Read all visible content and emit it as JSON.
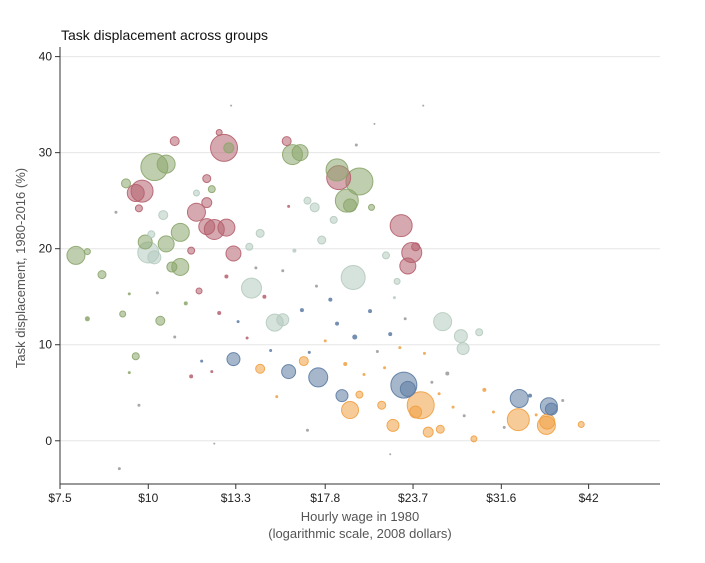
{
  "chart_data": {
    "type": "scatter",
    "title": "Task displacement across groups",
    "xlabel": "Hourly wage in 1980",
    "xlabel_sub": "(logarithmic scale, 2008 dollars)",
    "ylabel": "Task displacement, 1980-2016 (%)",
    "x_scale": "log",
    "xlim": [
      7.5,
      53
    ],
    "ylim": [
      -4.5,
      41
    ],
    "x_ticks": [
      7.5,
      10,
      13.3,
      17.8,
      23.7,
      31.6,
      42
    ],
    "x_tick_labels": [
      "$7.5",
      "$10",
      "$13.3",
      "$17.8",
      "$23.7",
      "$31.6",
      "$42"
    ],
    "y_ticks": [
      0,
      10,
      20,
      30,
      40
    ],
    "grid": "horizontal",
    "legend": "none",
    "colors": {
      "green": "#8ba66b",
      "red": "#b5606e",
      "blue": "#5c7ba3",
      "orange": "#f0a042",
      "lightgreen": "#b5cbbf",
      "gray": "#999999"
    },
    "points": [
      {
        "x": 7.9,
        "y": 19.3,
        "size": 18,
        "color": "green"
      },
      {
        "x": 8.2,
        "y": 19.7,
        "size": 6,
        "color": "green"
      },
      {
        "x": 8.6,
        "y": 17.3,
        "size": 8,
        "color": "green"
      },
      {
        "x": 8.2,
        "y": 12.7,
        "size": 5,
        "color": "green"
      },
      {
        "x": 9.2,
        "y": 13.2,
        "size": 6,
        "color": "green"
      },
      {
        "x": 9.6,
        "y": 8.8,
        "size": 7,
        "color": "green"
      },
      {
        "x": 9.3,
        "y": 26.8,
        "size": 9,
        "color": "green"
      },
      {
        "x": 9.6,
        "y": 25.8,
        "size": 17,
        "color": "red"
      },
      {
        "x": 9.8,
        "y": 26.0,
        "size": 22,
        "color": "red"
      },
      {
        "x": 10.2,
        "y": 28.5,
        "size": 27,
        "color": "green"
      },
      {
        "x": 10.6,
        "y": 28.8,
        "size": 18,
        "color": "green"
      },
      {
        "x": 9.9,
        "y": 20.7,
        "size": 14,
        "color": "green"
      },
      {
        "x": 10.0,
        "y": 19.6,
        "size": 21,
        "color": "lightgreen"
      },
      {
        "x": 10.2,
        "y": 19.1,
        "size": 13,
        "color": "lightgreen"
      },
      {
        "x": 10.6,
        "y": 20.5,
        "size": 16,
        "color": "green"
      },
      {
        "x": 11.1,
        "y": 21.7,
        "size": 18,
        "color": "green"
      },
      {
        "x": 10.8,
        "y": 18.1,
        "size": 10,
        "color": "green"
      },
      {
        "x": 11.1,
        "y": 18.1,
        "size": 17,
        "color": "green"
      },
      {
        "x": 10.5,
        "y": 23.5,
        "size": 9,
        "color": "lightgreen"
      },
      {
        "x": 10.1,
        "y": 21.5,
        "size": 7,
        "color": "lightgreen"
      },
      {
        "x": 10.4,
        "y": 12.5,
        "size": 9,
        "color": "green"
      },
      {
        "x": 10.9,
        "y": 31.2,
        "size": 9,
        "color": "red"
      },
      {
        "x": 9.7,
        "y": 24.2,
        "size": 7,
        "color": "red"
      },
      {
        "x": 11.7,
        "y": 23.8,
        "size": 18,
        "color": "red"
      },
      {
        "x": 12.1,
        "y": 22.3,
        "size": 16,
        "color": "red"
      },
      {
        "x": 12.4,
        "y": 22.0,
        "size": 20,
        "color": "red"
      },
      {
        "x": 12.9,
        "y": 22.2,
        "size": 17,
        "color": "red"
      },
      {
        "x": 12.1,
        "y": 24.8,
        "size": 10,
        "color": "red"
      },
      {
        "x": 12.8,
        "y": 30.5,
        "size": 27,
        "color": "red"
      },
      {
        "x": 13.0,
        "y": 30.5,
        "size": 10,
        "color": "green"
      },
      {
        "x": 12.6,
        "y": 32.1,
        "size": 6,
        "color": "red"
      },
      {
        "x": 13.2,
        "y": 19.5,
        "size": 15,
        "color": "red"
      },
      {
        "x": 12.1,
        "y": 27.3,
        "size": 8,
        "color": "red"
      },
      {
        "x": 12.3,
        "y": 26.2,
        "size": 7,
        "color": "green"
      },
      {
        "x": 11.7,
        "y": 25.8,
        "size": 6,
        "color": "lightgreen"
      },
      {
        "x": 11.5,
        "y": 19.8,
        "size": 7,
        "color": "red"
      },
      {
        "x": 11.8,
        "y": 15.6,
        "size": 6,
        "color": "red"
      },
      {
        "x": 14.0,
        "y": 15.9,
        "size": 20,
        "color": "lightgreen"
      },
      {
        "x": 14.4,
        "y": 21.6,
        "size": 8,
        "color": "lightgreen"
      },
      {
        "x": 13.9,
        "y": 20.2,
        "size": 7,
        "color": "lightgreen"
      },
      {
        "x": 15.1,
        "y": 12.3,
        "size": 17,
        "color": "lightgreen"
      },
      {
        "x": 15.5,
        "y": 12.6,
        "size": 12,
        "color": "lightgreen"
      },
      {
        "x": 16.0,
        "y": 29.8,
        "size": 20,
        "color": "green"
      },
      {
        "x": 16.4,
        "y": 30.0,
        "size": 16,
        "color": "green"
      },
      {
        "x": 15.7,
        "y": 31.2,
        "size": 9,
        "color": "red"
      },
      {
        "x": 16.8,
        "y": 25.0,
        "size": 7,
        "color": "lightgreen"
      },
      {
        "x": 17.2,
        "y": 24.3,
        "size": 9,
        "color": "lightgreen"
      },
      {
        "x": 17.6,
        "y": 20.9,
        "size": 8,
        "color": "lightgreen"
      },
      {
        "x": 18.5,
        "y": 28.2,
        "size": 22,
        "color": "green"
      },
      {
        "x": 18.6,
        "y": 27.4,
        "size": 24,
        "color": "red"
      },
      {
        "x": 19.9,
        "y": 27.0,
        "size": 27,
        "color": "green"
      },
      {
        "x": 19.1,
        "y": 25.0,
        "size": 23,
        "color": "green"
      },
      {
        "x": 19.3,
        "y": 24.5,
        "size": 13,
        "color": "green"
      },
      {
        "x": 19.5,
        "y": 17.0,
        "size": 24,
        "color": "lightgreen"
      },
      {
        "x": 18.3,
        "y": 23.0,
        "size": 7,
        "color": "lightgreen"
      },
      {
        "x": 20.7,
        "y": 24.3,
        "size": 6,
        "color": "green"
      },
      {
        "x": 21.7,
        "y": 19.3,
        "size": 7,
        "color": "lightgreen"
      },
      {
        "x": 22.8,
        "y": 22.4,
        "size": 22,
        "color": "red"
      },
      {
        "x": 23.6,
        "y": 19.6,
        "size": 20,
        "color": "red"
      },
      {
        "x": 23.3,
        "y": 18.2,
        "size": 16,
        "color": "red"
      },
      {
        "x": 23.9,
        "y": 20.2,
        "size": 8,
        "color": "red"
      },
      {
        "x": 22.5,
        "y": 16.6,
        "size": 6,
        "color": "lightgreen"
      },
      {
        "x": 26.1,
        "y": 12.4,
        "size": 18,
        "color": "lightgreen"
      },
      {
        "x": 27.7,
        "y": 10.9,
        "size": 13,
        "color": "lightgreen"
      },
      {
        "x": 27.9,
        "y": 9.6,
        "size": 12,
        "color": "lightgreen"
      },
      {
        "x": 29.4,
        "y": 11.3,
        "size": 7,
        "color": "lightgreen"
      },
      {
        "x": 13.2,
        "y": 8.5,
        "size": 13,
        "color": "blue"
      },
      {
        "x": 14.4,
        "y": 7.5,
        "size": 9,
        "color": "orange"
      },
      {
        "x": 15.8,
        "y": 7.2,
        "size": 14,
        "color": "blue"
      },
      {
        "x": 16.6,
        "y": 8.3,
        "size": 9,
        "color": "orange"
      },
      {
        "x": 17.4,
        "y": 6.6,
        "size": 19,
        "color": "blue"
      },
      {
        "x": 18.8,
        "y": 4.7,
        "size": 12,
        "color": "blue"
      },
      {
        "x": 19.3,
        "y": 3.2,
        "size": 17,
        "color": "orange"
      },
      {
        "x": 19.9,
        "y": 4.8,
        "size": 7,
        "color": "orange"
      },
      {
        "x": 21.4,
        "y": 3.7,
        "size": 8,
        "color": "orange"
      },
      {
        "x": 23.0,
        "y": 5.8,
        "size": 26,
        "color": "blue"
      },
      {
        "x": 23.3,
        "y": 5.4,
        "size": 15,
        "color": "blue"
      },
      {
        "x": 24.3,
        "y": 3.7,
        "size": 27,
        "color": "orange"
      },
      {
        "x": 23.9,
        "y": 3.0,
        "size": 12,
        "color": "orange"
      },
      {
        "x": 22.2,
        "y": 1.6,
        "size": 12,
        "color": "orange"
      },
      {
        "x": 24.9,
        "y": 0.9,
        "size": 10,
        "color": "orange"
      },
      {
        "x": 25.9,
        "y": 1.2,
        "size": 8,
        "color": "orange"
      },
      {
        "x": 28.9,
        "y": 0.2,
        "size": 6,
        "color": "orange"
      },
      {
        "x": 33.5,
        "y": 4.4,
        "size": 18,
        "color": "blue"
      },
      {
        "x": 33.4,
        "y": 2.2,
        "size": 22,
        "color": "orange"
      },
      {
        "x": 36.9,
        "y": 3.6,
        "size": 17,
        "color": "blue"
      },
      {
        "x": 37.2,
        "y": 3.3,
        "size": 12,
        "color": "blue"
      },
      {
        "x": 36.7,
        "y": 2.0,
        "size": 15,
        "color": "orange"
      },
      {
        "x": 36.6,
        "y": 1.6,
        "size": 18,
        "color": "orange"
      },
      {
        "x": 41.0,
        "y": 1.7,
        "size": 6,
        "color": "orange"
      },
      {
        "x": 9.0,
        "y": 23.8,
        "size": 3,
        "color": "gray"
      },
      {
        "x": 9.4,
        "y": 15.3,
        "size": 3,
        "color": "green"
      },
      {
        "x": 9.7,
        "y": 3.7,
        "size": 3,
        "color": "gray"
      },
      {
        "x": 9.1,
        "y": -2.9,
        "size": 3,
        "color": "gray"
      },
      {
        "x": 9.4,
        "y": 7.1,
        "size": 3,
        "color": "green"
      },
      {
        "x": 10.3,
        "y": 15.4,
        "size": 3,
        "color": "gray"
      },
      {
        "x": 10.9,
        "y": 10.8,
        "size": 3,
        "color": "gray"
      },
      {
        "x": 11.3,
        "y": 14.3,
        "size": 4,
        "color": "green"
      },
      {
        "x": 11.9,
        "y": 8.3,
        "size": 3,
        "color": "blue"
      },
      {
        "x": 12.3,
        "y": 7.2,
        "size": 3,
        "color": "red"
      },
      {
        "x": 11.5,
        "y": 6.7,
        "size": 4,
        "color": "red"
      },
      {
        "x": 12.6,
        "y": 13.3,
        "size": 4,
        "color": "red"
      },
      {
        "x": 12.9,
        "y": 17.1,
        "size": 4,
        "color": "red"
      },
      {
        "x": 13.4,
        "y": 12.4,
        "size": 3,
        "color": "blue"
      },
      {
        "x": 13.8,
        "y": 10.7,
        "size": 3,
        "color": "red"
      },
      {
        "x": 14.2,
        "y": 18.0,
        "size": 3,
        "color": "gray"
      },
      {
        "x": 14.6,
        "y": 15.0,
        "size": 4,
        "color": "red"
      },
      {
        "x": 14.9,
        "y": 9.4,
        "size": 3,
        "color": "blue"
      },
      {
        "x": 15.2,
        "y": 4.6,
        "size": 3,
        "color": "orange"
      },
      {
        "x": 15.5,
        "y": 17.7,
        "size": 3,
        "color": "gray"
      },
      {
        "x": 15.8,
        "y": 24.4,
        "size": 3,
        "color": "red"
      },
      {
        "x": 16.1,
        "y": 19.8,
        "size": 4,
        "color": "lightgreen"
      },
      {
        "x": 16.5,
        "y": 13.6,
        "size": 4,
        "color": "blue"
      },
      {
        "x": 16.9,
        "y": 9.2,
        "size": 3,
        "color": "blue"
      },
      {
        "x": 17.3,
        "y": 16.1,
        "size": 3,
        "color": "gray"
      },
      {
        "x": 17.8,
        "y": 10.4,
        "size": 3,
        "color": "orange"
      },
      {
        "x": 18.1,
        "y": 14.7,
        "size": 4,
        "color": "blue"
      },
      {
        "x": 18.5,
        "y": 12.2,
        "size": 4,
        "color": "blue"
      },
      {
        "x": 19.0,
        "y": 8.0,
        "size": 4,
        "color": "orange"
      },
      {
        "x": 19.6,
        "y": 10.8,
        "size": 5,
        "color": "blue"
      },
      {
        "x": 20.2,
        "y": 6.9,
        "size": 3,
        "color": "orange"
      },
      {
        "x": 20.6,
        "y": 13.5,
        "size": 4,
        "color": "blue"
      },
      {
        "x": 21.1,
        "y": 9.3,
        "size": 3,
        "color": "gray"
      },
      {
        "x": 21.6,
        "y": 7.6,
        "size": 3,
        "color": "orange"
      },
      {
        "x": 22.0,
        "y": 11.1,
        "size": 4,
        "color": "blue"
      },
      {
        "x": 22.3,
        "y": 14.9,
        "size": 3,
        "color": "lightgreen"
      },
      {
        "x": 22.7,
        "y": 9.7,
        "size": 3,
        "color": "orange"
      },
      {
        "x": 23.1,
        "y": 12.7,
        "size": 3,
        "color": "gray"
      },
      {
        "x": 24.6,
        "y": 9.1,
        "size": 3,
        "color": "orange"
      },
      {
        "x": 25.2,
        "y": 6.1,
        "size": 3,
        "color": "gray"
      },
      {
        "x": 25.8,
        "y": 4.9,
        "size": 3,
        "color": "orange"
      },
      {
        "x": 26.5,
        "y": 7.0,
        "size": 4,
        "color": "gray"
      },
      {
        "x": 27.0,
        "y": 3.5,
        "size": 3,
        "color": "orange"
      },
      {
        "x": 28.0,
        "y": 2.6,
        "size": 3,
        "color": "gray"
      },
      {
        "x": 29.9,
        "y": 5.3,
        "size": 4,
        "color": "orange"
      },
      {
        "x": 30.8,
        "y": 3.0,
        "size": 3,
        "color": "orange"
      },
      {
        "x": 31.9,
        "y": 1.4,
        "size": 3,
        "color": "gray"
      },
      {
        "x": 34.7,
        "y": 4.7,
        "size": 4,
        "color": "blue"
      },
      {
        "x": 35.4,
        "y": 2.7,
        "size": 3,
        "color": "orange"
      },
      {
        "x": 38.6,
        "y": 4.2,
        "size": 3,
        "color": "gray"
      },
      {
        "x": 24.5,
        "y": 34.9,
        "size": 2,
        "color": "gray"
      },
      {
        "x": 13.1,
        "y": 34.9,
        "size": 2,
        "color": "gray"
      },
      {
        "x": 22.0,
        "y": -1.4,
        "size": 2,
        "color": "gray"
      },
      {
        "x": 16.8,
        "y": 1.1,
        "size": 3,
        "color": "gray"
      },
      {
        "x": 12.4,
        "y": -0.3,
        "size": 2,
        "color": "gray"
      },
      {
        "x": 19.7,
        "y": 30.8,
        "size": 3,
        "color": "gray"
      },
      {
        "x": 20.9,
        "y": 33.0,
        "size": 2,
        "color": "gray"
      }
    ]
  }
}
